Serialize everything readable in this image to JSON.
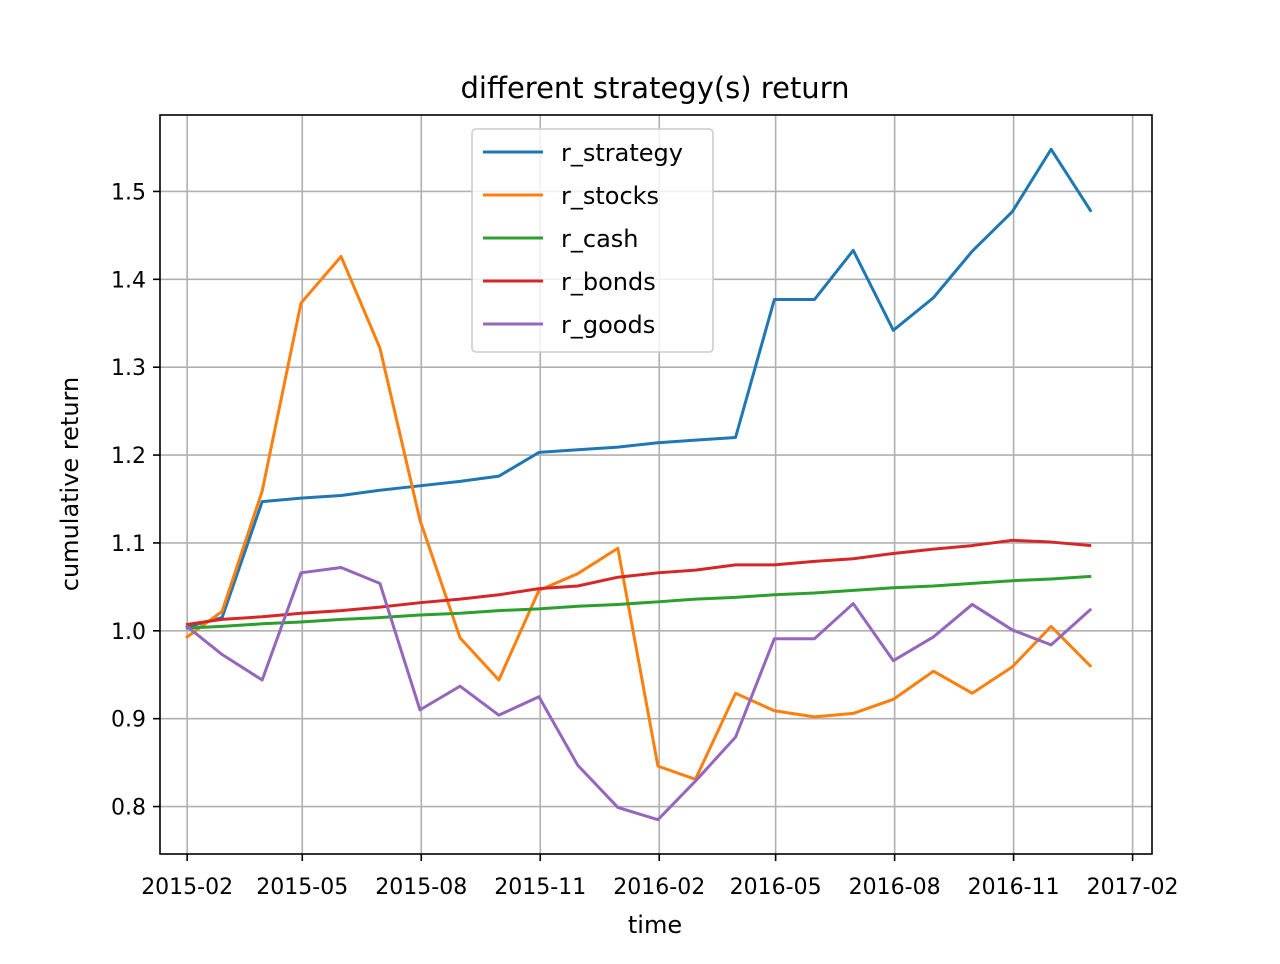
{
  "chart_data": {
    "type": "line",
    "title": "different strategy(s) return",
    "xlabel": "time",
    "ylabel": "cumulative return",
    "grid": true,
    "legend_position": "upper center",
    "x_ticks": [
      "2015-02",
      "2015-05",
      "2015-08",
      "2015-11",
      "2016-02",
      "2016-05",
      "2016-08",
      "2016-11",
      "2017-02"
    ],
    "y_ticks": [
      "0.8",
      "0.9",
      "1.0",
      "1.1",
      "1.2",
      "1.3",
      "1.4",
      "1.5"
    ],
    "xlim": [
      "2015-01-11",
      "2017-02-16"
    ],
    "ylim": [
      0.746,
      1.587
    ],
    "x": [
      "2015-01-31",
      "2015-02-28",
      "2015-03-31",
      "2015-04-30",
      "2015-05-31",
      "2015-06-30",
      "2015-07-31",
      "2015-08-31",
      "2015-09-30",
      "2015-10-31",
      "2015-11-30",
      "2015-12-31",
      "2016-01-31",
      "2016-02-29",
      "2016-03-31",
      "2016-04-30",
      "2016-05-31",
      "2016-06-30",
      "2016-07-31",
      "2016-08-31",
      "2016-09-30",
      "2016-10-31",
      "2016-11-30",
      "2016-12-31"
    ],
    "series": [
      {
        "name": "r_strategy",
        "color": "#1f77b4",
        "values": [
          1.004,
          1.015,
          1.147,
          1.151,
          1.154,
          1.16,
          1.165,
          1.17,
          1.176,
          1.203,
          1.206,
          1.209,
          1.214,
          1.217,
          1.22,
          1.377,
          1.377,
          1.433,
          1.342,
          1.379,
          1.432,
          1.477,
          1.548,
          1.477
        ]
      },
      {
        "name": "r_stocks",
        "color": "#ff7f0e",
        "values": [
          0.992,
          1.022,
          1.159,
          1.373,
          1.426,
          1.322,
          1.126,
          0.992,
          0.944,
          1.046,
          1.065,
          1.094,
          0.846,
          0.831,
          0.929,
          0.909,
          0.902,
          0.906,
          0.922,
          0.954,
          0.929,
          0.959,
          1.005,
          0.959
        ]
      },
      {
        "name": "r_cash",
        "color": "#2ca02c",
        "values": [
          1.003,
          1.005,
          1.008,
          1.01,
          1.013,
          1.015,
          1.018,
          1.02,
          1.023,
          1.025,
          1.028,
          1.03,
          1.033,
          1.036,
          1.038,
          1.041,
          1.043,
          1.046,
          1.049,
          1.051,
          1.054,
          1.057,
          1.059,
          1.062
        ]
      },
      {
        "name": "r_bonds",
        "color": "#d62728",
        "values": [
          1.007,
          1.013,
          1.016,
          1.02,
          1.023,
          1.027,
          1.032,
          1.036,
          1.041,
          1.048,
          1.051,
          1.061,
          1.066,
          1.069,
          1.075,
          1.075,
          1.079,
          1.082,
          1.088,
          1.093,
          1.097,
          1.103,
          1.101,
          1.097
        ]
      },
      {
        "name": "r_goods",
        "color": "#9467bd",
        "values": [
          1.006,
          0.973,
          0.944,
          1.066,
          1.072,
          1.054,
          0.91,
          0.937,
          0.904,
          0.925,
          0.847,
          0.799,
          0.785,
          0.829,
          0.879,
          0.991,
          0.991,
          1.031,
          0.966,
          0.993,
          1.03,
          1.001,
          0.984,
          1.025
        ]
      }
    ]
  }
}
